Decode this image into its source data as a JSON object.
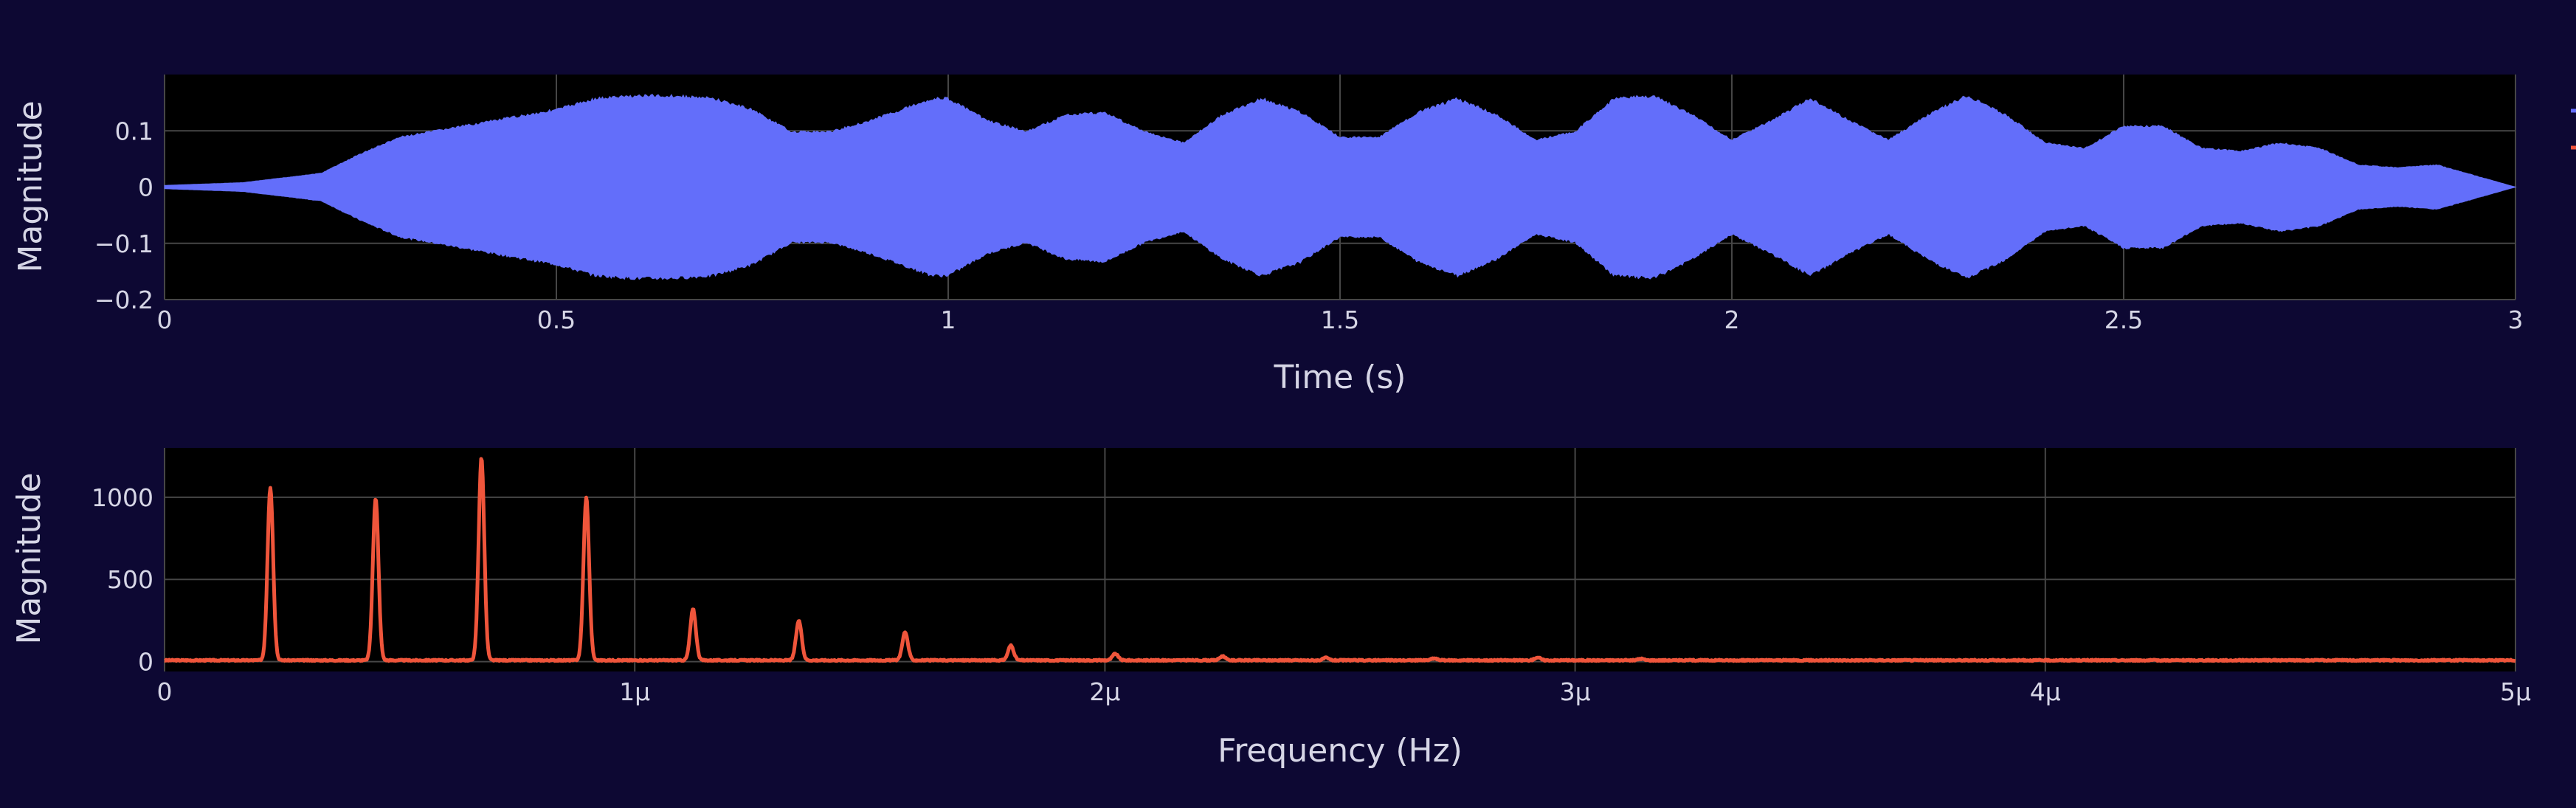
{
  "colors": {
    "page_background": "#0d0833",
    "plot_background": "#000000",
    "grid": "#464646",
    "text": "#d6d6e6",
    "signal": "#636efa",
    "spectrum": "#ef553b"
  },
  "chart_data": [
    {
      "type": "area",
      "xlabel": "Time (s)",
      "ylabel": "Magnitude",
      "xlim": [
        0,
        3
      ],
      "ylim": [
        -0.2,
        0.2
      ],
      "xticks": [
        0,
        0.5,
        1,
        1.5,
        2,
        2.5,
        3
      ],
      "xtick_labels": [
        "0",
        "0.5",
        "1",
        "1.5",
        "2",
        "2.5",
        "3"
      ],
      "yticks": [
        0.1,
        0,
        -0.1,
        -0.2
      ],
      "ytick_labels": [
        "0.1",
        "0",
        "−0.1",
        "−0.2"
      ],
      "grid": true,
      "series": [
        {
          "color": "#636efa",
          "x": [
            0,
            0.1,
            0.2,
            0.25,
            0.3,
            0.4,
            0.5,
            0.55,
            0.6,
            0.65,
            0.7,
            0.75,
            0.8,
            0.85,
            0.9,
            0.95,
            0.98,
            1.0,
            1.05,
            1.1,
            1.15,
            1.2,
            1.25,
            1.3,
            1.35,
            1.4,
            1.45,
            1.5,
            1.55,
            1.6,
            1.65,
            1.7,
            1.75,
            1.8,
            1.85,
            1.9,
            1.95,
            2.0,
            2.05,
            2.1,
            2.15,
            2.2,
            2.25,
            2.3,
            2.35,
            2.4,
            2.45,
            2.5,
            2.55,
            2.6,
            2.65,
            2.7,
            2.75,
            2.8,
            2.85,
            2.9,
            2.95,
            3.0
          ],
          "upper": [
            0.003,
            0.008,
            0.025,
            0.06,
            0.09,
            0.115,
            0.14,
            0.16,
            0.165,
            0.165,
            0.16,
            0.14,
            0.1,
            0.1,
            0.12,
            0.145,
            0.16,
            0.16,
            0.12,
            0.1,
            0.13,
            0.135,
            0.1,
            0.08,
            0.13,
            0.16,
            0.135,
            0.09,
            0.09,
            0.135,
            0.16,
            0.13,
            0.085,
            0.1,
            0.16,
            0.165,
            0.13,
            0.085,
            0.12,
            0.16,
            0.12,
            0.085,
            0.13,
            0.165,
            0.13,
            0.08,
            0.07,
            0.11,
            0.11,
            0.07,
            0.065,
            0.08,
            0.07,
            0.04,
            0.035,
            0.04,
            0.02,
            0.0
          ],
          "lower": [
            -0.003,
            -0.008,
            -0.025,
            -0.06,
            -0.09,
            -0.115,
            -0.14,
            -0.16,
            -0.165,
            -0.165,
            -0.16,
            -0.14,
            -0.1,
            -0.1,
            -0.12,
            -0.145,
            -0.16,
            -0.16,
            -0.12,
            -0.1,
            -0.13,
            -0.135,
            -0.1,
            -0.08,
            -0.13,
            -0.16,
            -0.135,
            -0.09,
            -0.09,
            -0.135,
            -0.16,
            -0.13,
            -0.085,
            -0.1,
            -0.16,
            -0.165,
            -0.13,
            -0.085,
            -0.12,
            -0.16,
            -0.12,
            -0.085,
            -0.13,
            -0.165,
            -0.13,
            -0.08,
            -0.07,
            -0.11,
            -0.11,
            -0.07,
            -0.065,
            -0.08,
            -0.07,
            -0.04,
            -0.035,
            -0.04,
            -0.02,
            0.0
          ]
        }
      ]
    },
    {
      "type": "line",
      "xlabel": "Frequency (Hz)",
      "ylabel": "Magnitude",
      "xlim": [
        0,
        5
      ],
      "ylim": [
        -60,
        1300
      ],
      "xticks": [
        0,
        1,
        2,
        3,
        4,
        5
      ],
      "xtick_labels": [
        "0",
        "1μ",
        "2μ",
        "3μ",
        "4μ",
        "5μ"
      ],
      "yticks": [
        1000,
        500,
        0
      ],
      "ytick_labels": [
        "1000",
        "500",
        "0"
      ],
      "grid": true,
      "series": [
        {
          "color": "#ef553b",
          "baseline": 8,
          "peaks": [
            {
              "x": 0.225,
              "y": 1050
            },
            {
              "x": 0.449,
              "y": 985
            },
            {
              "x": 0.674,
              "y": 1230
            },
            {
              "x": 0.897,
              "y": 990
            },
            {
              "x": 1.124,
              "y": 310
            },
            {
              "x": 1.349,
              "y": 240
            },
            {
              "x": 1.575,
              "y": 170
            },
            {
              "x": 1.8,
              "y": 90
            },
            {
              "x": 2.022,
              "y": 40
            },
            {
              "x": 2.25,
              "y": 25
            },
            {
              "x": 2.47,
              "y": 15
            },
            {
              "x": 2.7,
              "y": 12
            },
            {
              "x": 2.92,
              "y": 18
            },
            {
              "x": 3.14,
              "y": 10
            }
          ]
        }
      ]
    }
  ]
}
